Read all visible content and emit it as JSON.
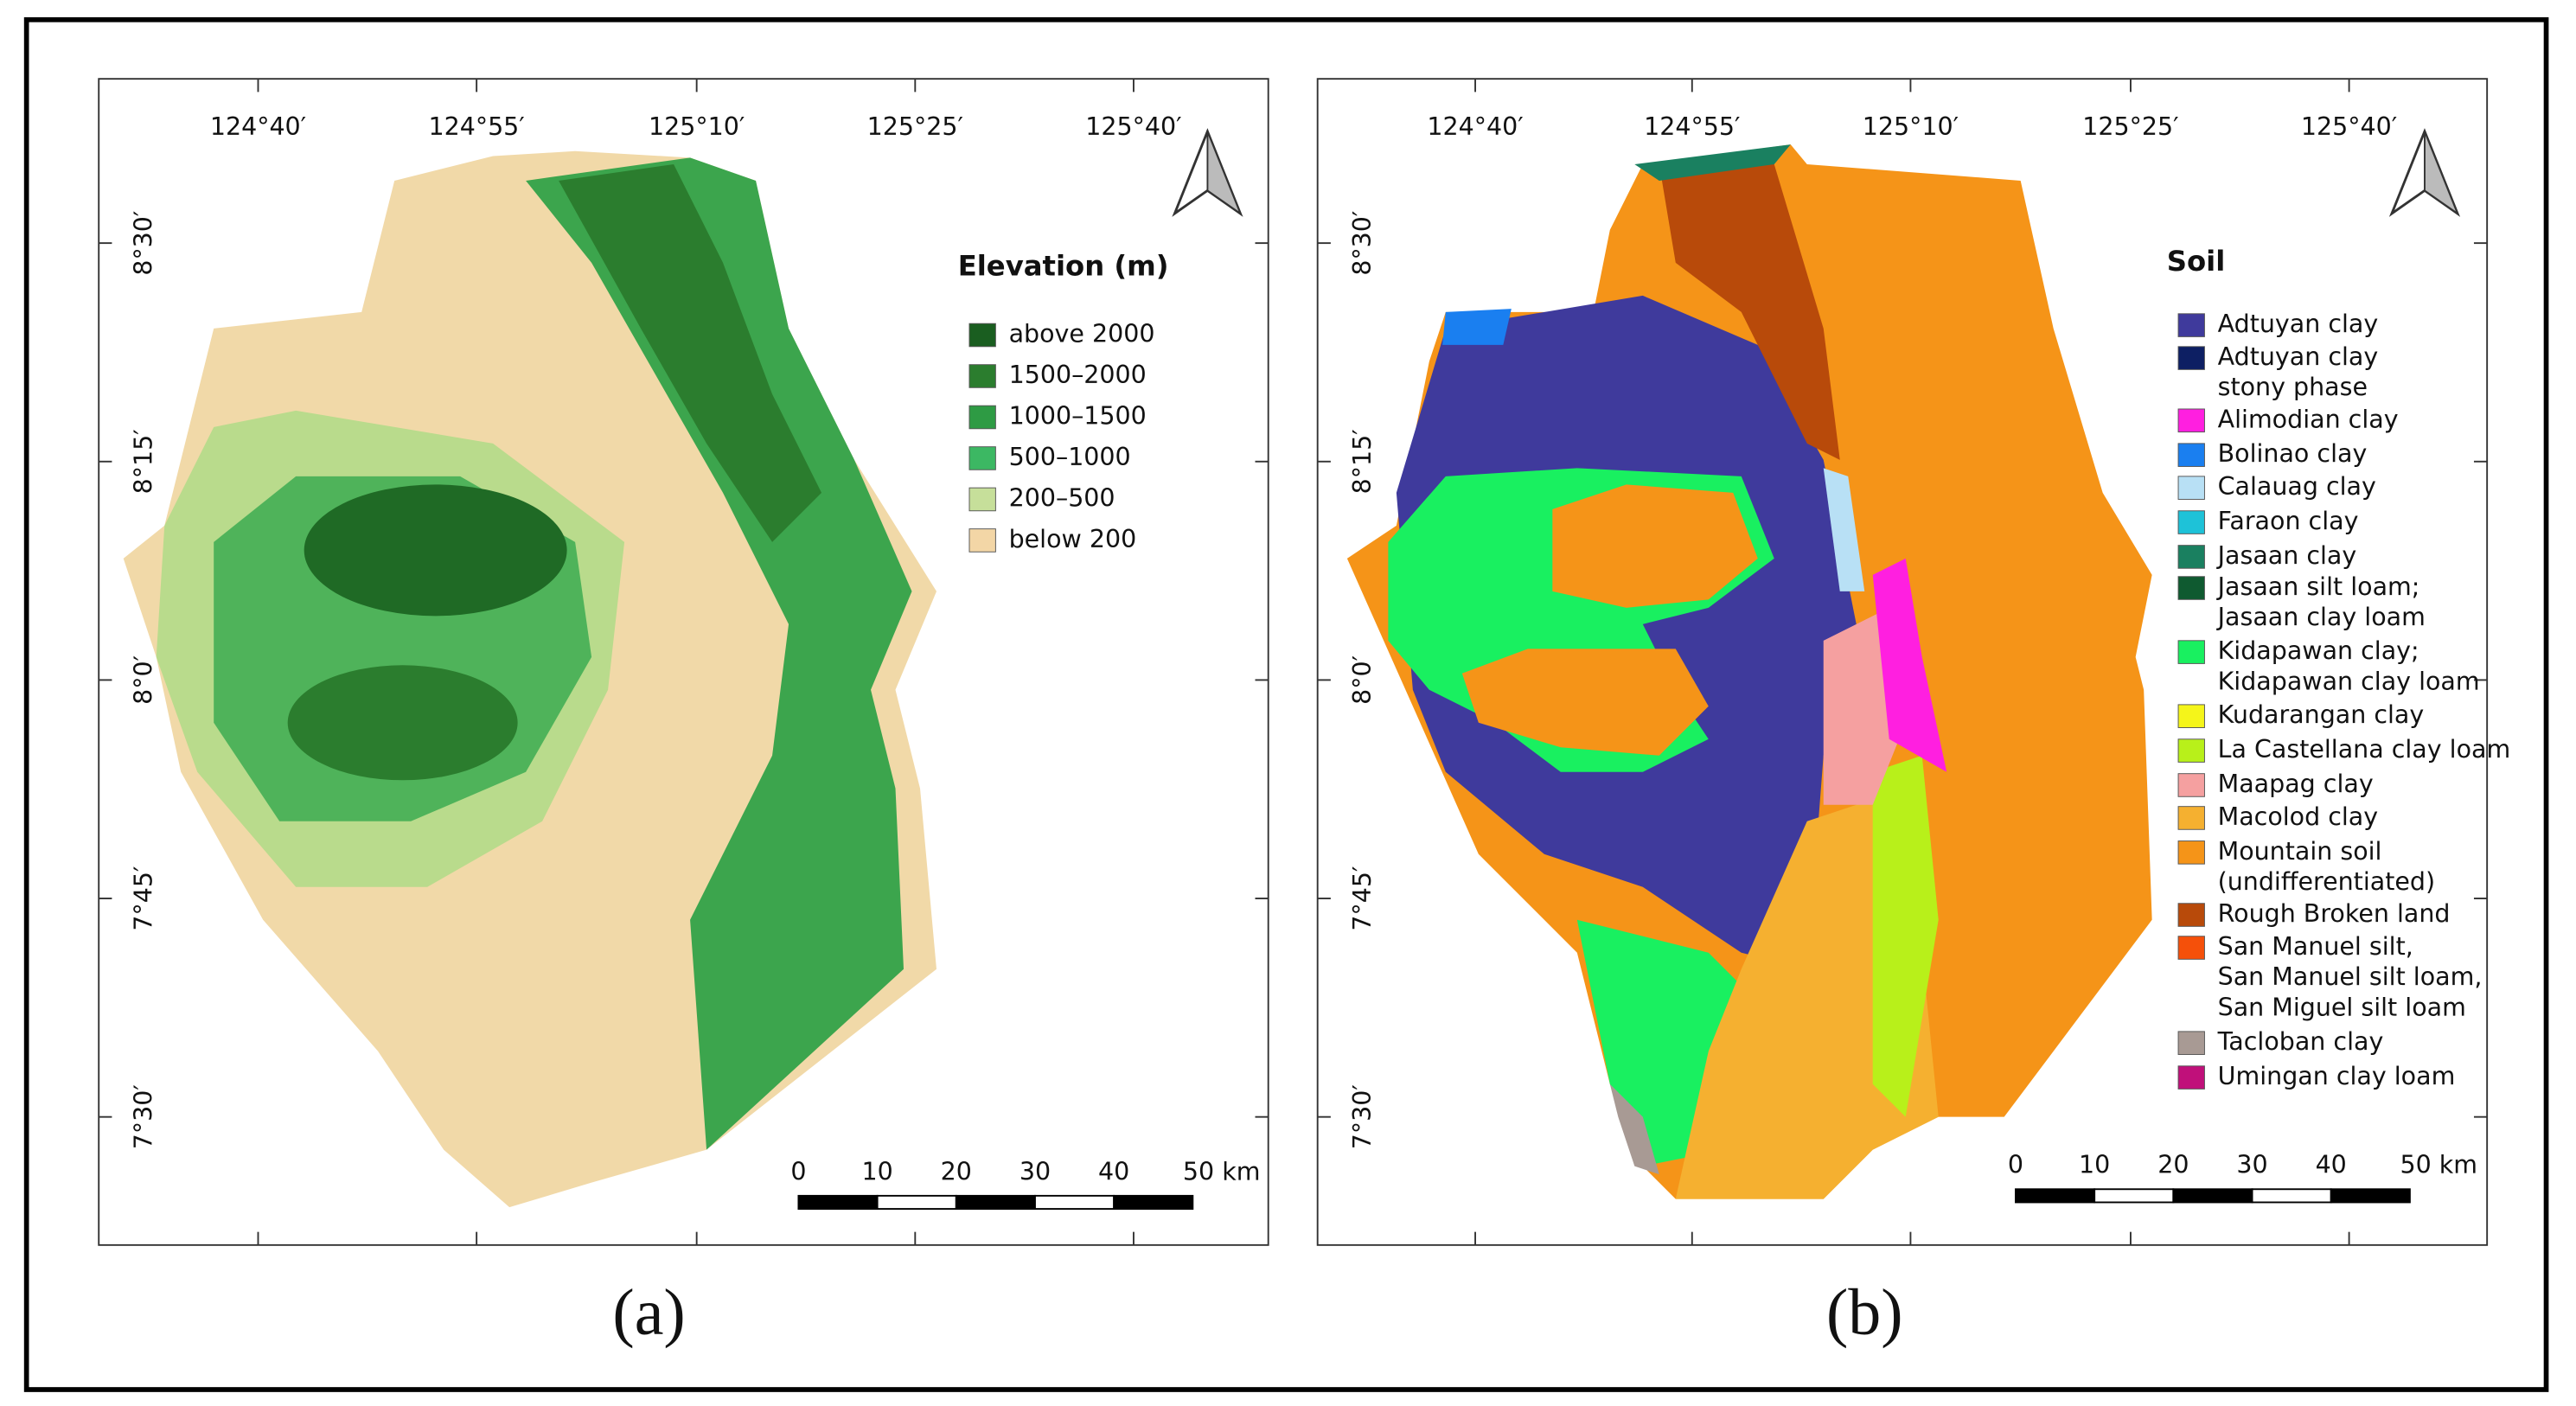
{
  "panels": [
    {
      "caption": "(a)",
      "lon_labels": [
        "124°40′",
        "124°55′",
        "125°10′",
        "125°25′",
        "125°40′"
      ],
      "lat_labels": [
        "8°30′",
        "8°15′",
        "8°0′",
        "7°45′",
        "7°30′"
      ],
      "legend": {
        "title": "Elevation (m)",
        "items": [
          {
            "label": [
              "above 2000"
            ],
            "color": "#1a5e20"
          },
          {
            "label": [
              "1500–2000"
            ],
            "color": "#2b7d2e"
          },
          {
            "label": [
              "1000–1500"
            ],
            "color": "#2e9b44"
          },
          {
            "label": [
              "500–1000"
            ],
            "color": "#3cb863"
          },
          {
            "label": [
              "200–500"
            ],
            "color": "#c6df9a"
          },
          {
            "label": [
              "below 200"
            ],
            "color": "#f3d6a6"
          }
        ]
      },
      "scale_labels": [
        "0",
        "10",
        "20",
        "30",
        "40",
        "50 km"
      ]
    },
    {
      "caption": "(b)",
      "lon_labels": [
        "124°40′",
        "124°55′",
        "125°10′",
        "125°25′",
        "125°40′"
      ],
      "lat_labels": [
        "8°30′",
        "8°15′",
        "8°0′",
        "7°45′",
        "7°30′"
      ],
      "legend": {
        "title": "Soil",
        "items": [
          {
            "label": [
              "Adtuyan clay"
            ],
            "color": "#3f3a9c"
          },
          {
            "label": [
              "Adtuyan clay",
              "stony phase"
            ],
            "color": "#0d1f63"
          },
          {
            "label": [
              "Alimodian clay"
            ],
            "color": "#ff1fe0"
          },
          {
            "label": [
              "Bolinao clay"
            ],
            "color": "#1a7ff0"
          },
          {
            "label": [
              "Calauag clay"
            ],
            "color": "#b8e0f5"
          },
          {
            "label": [
              "Faraon clay"
            ],
            "color": "#1ec2d8"
          },
          {
            "label": [
              "Jasaan clay"
            ],
            "color": "#1a8060"
          },
          {
            "label": [
              "Jasaan silt loam;",
              "Jasaan clay loam"
            ],
            "color": "#0f5a30"
          },
          {
            "label": [
              "Kidapawan clay;",
              "Kidapawan clay loam"
            ],
            "color": "#19f060"
          },
          {
            "label": [
              "Kudarangan clay"
            ],
            "color": "#f5f51a"
          },
          {
            "label": [
              "La Castellana clay loam"
            ],
            "color": "#b8f01a"
          },
          {
            "label": [
              "Maapag clay"
            ],
            "color": "#f5a0a0"
          },
          {
            "label": [
              "Macolod clay"
            ],
            "color": "#f5b030"
          },
          {
            "label": [
              "Mountain soil",
              "(undifferentiated)"
            ],
            "color": "#f59418"
          },
          {
            "label": [
              "Rough Broken land"
            ],
            "color": "#b84a0a"
          },
          {
            "label": [
              "San Manuel silt,",
              "San Manuel silt loam,",
              "San Miguel silt loam"
            ],
            "color": "#f5500a"
          },
          {
            "label": [
              "Tacloban clay"
            ],
            "color": "#a89a94"
          },
          {
            "label": [
              "Umingan clay loam"
            ],
            "color": "#c0107a"
          }
        ]
      },
      "scale_labels": [
        "0",
        "10",
        "20",
        "30",
        "40",
        "50 km"
      ]
    }
  ]
}
